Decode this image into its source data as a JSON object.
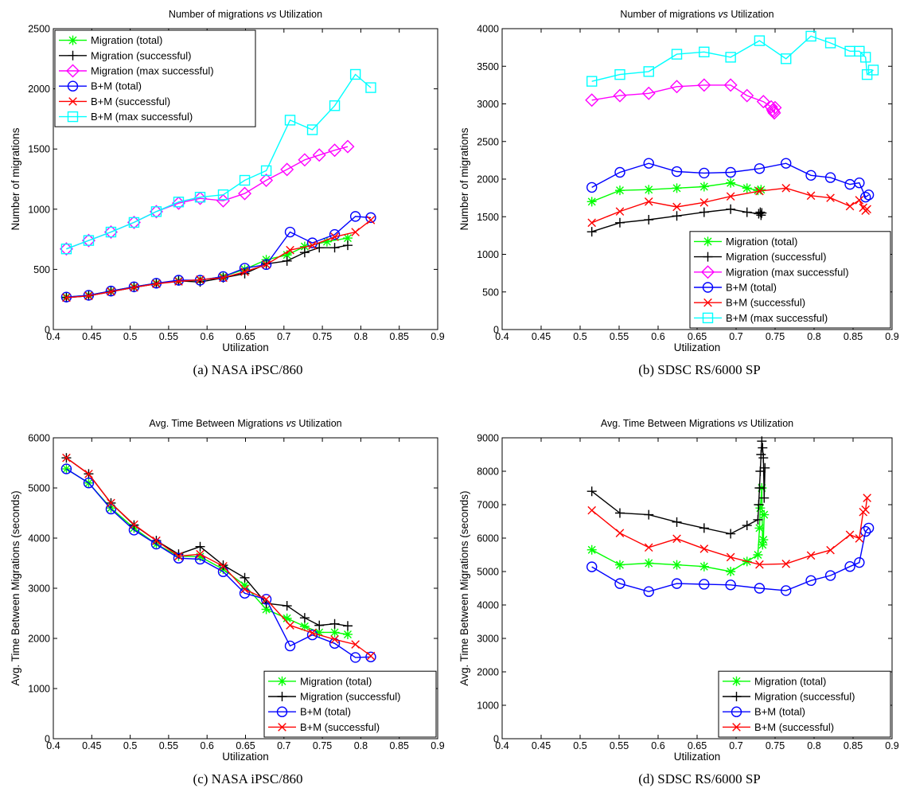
{
  "chart_data": [
    {
      "type": "line",
      "title": "Number of migrations vs Utilization",
      "title_parts": [
        "Number of migrations ",
        "vs",
        " Utilization"
      ],
      "xlabel": "Utilization",
      "ylabel": "Number of migrations",
      "caption": "(a) NASA iPSC/860",
      "xlim": [
        0.4,
        0.9
      ],
      "ylim": [
        0,
        2500
      ],
      "xticks": [
        "0.4",
        "0.45",
        "0.5",
        "0.55",
        "0.6",
        "0.65",
        "0.7",
        "0.75",
        "0.8",
        "0.85",
        "0.9"
      ],
      "yticks": [
        "0",
        "500",
        "1000",
        "1500",
        "2000",
        "2500"
      ],
      "legend_position": "top-left",
      "series": [
        {
          "name": "Migration (total)",
          "color": "#00ff00",
          "marker": "asterisk",
          "x": [
            0.417,
            0.446,
            0.475,
            0.505,
            0.534,
            0.563,
            0.591,
            0.621,
            0.649,
            0.677,
            0.704,
            0.727,
            0.756,
            0.783
          ],
          "y": [
            270,
            285,
            320,
            355,
            385,
            405,
            410,
            440,
            500,
            580,
            620,
            690,
            730,
            760
          ]
        },
        {
          "name": "Migration (successful)",
          "color": "#000000",
          "marker": "plus",
          "x": [
            0.417,
            0.446,
            0.475,
            0.505,
            0.534,
            0.563,
            0.591,
            0.621,
            0.649,
            0.677,
            0.704,
            0.727,
            0.746,
            0.766,
            0.783
          ],
          "y": [
            265,
            280,
            315,
            350,
            380,
            405,
            395,
            430,
            465,
            545,
            570,
            640,
            680,
            680,
            700
          ]
        },
        {
          "name": "Migration (max successful)",
          "color": "#ff00ff",
          "marker": "diamond",
          "x": [
            0.417,
            0.446,
            0.475,
            0.505,
            0.534,
            0.563,
            0.591,
            0.621,
            0.649,
            0.677,
            0.704,
            0.727,
            0.746,
            0.766,
            0.783
          ],
          "y": [
            670,
            740,
            810,
            890,
            980,
            1050,
            1090,
            1070,
            1130,
            1240,
            1330,
            1410,
            1450,
            1490,
            1520
          ]
        },
        {
          "name": "B+M (total)",
          "color": "#0000ff",
          "marker": "circle",
          "x": [
            0.417,
            0.446,
            0.475,
            0.505,
            0.534,
            0.563,
            0.591,
            0.621,
            0.649,
            0.677,
            0.708,
            0.737,
            0.766,
            0.793,
            0.813
          ],
          "y": [
            270,
            285,
            320,
            355,
            385,
            410,
            410,
            440,
            510,
            540,
            810,
            720,
            790,
            940,
            930
          ]
        },
        {
          "name": "B+M (successful)",
          "color": "#ff0000",
          "marker": "x",
          "x": [
            0.417,
            0.446,
            0.475,
            0.505,
            0.534,
            0.563,
            0.591,
            0.621,
            0.649,
            0.677,
            0.708,
            0.737,
            0.766,
            0.793,
            0.813
          ],
          "y": [
            265,
            280,
            315,
            350,
            380,
            400,
            415,
            430,
            480,
            540,
            660,
            700,
            770,
            810,
            910
          ]
        },
        {
          "name": "B+M (max successful)",
          "color": "#00ffff",
          "marker": "square",
          "x": [
            0.417,
            0.446,
            0.475,
            0.505,
            0.534,
            0.563,
            0.591,
            0.621,
            0.649,
            0.677,
            0.708,
            0.737,
            0.766,
            0.793,
            0.813
          ],
          "y": [
            670,
            740,
            810,
            890,
            980,
            1060,
            1100,
            1120,
            1240,
            1320,
            1740,
            1660,
            1860,
            2120,
            2010
          ]
        }
      ]
    },
    {
      "type": "line",
      "title": "Number of migrations vs Utilization",
      "title_parts": [
        "Number of migrations ",
        "vs",
        " Utilization"
      ],
      "xlabel": "Utilization",
      "ylabel": "Number of migrations",
      "caption": "(b) SDSC RS/6000 SP",
      "xlim": [
        0.4,
        0.9
      ],
      "ylim": [
        0,
        4000
      ],
      "xticks": [
        "0.4",
        "0.45",
        "0.5",
        "0.55",
        "0.6",
        "0.65",
        "0.7",
        "0.75",
        "0.8",
        "0.85",
        "0.9"
      ],
      "yticks": [
        "0",
        "500",
        "1000",
        "1500",
        "2000",
        "2500",
        "3000",
        "3500",
        "4000"
      ],
      "legend_position": "bottom-right",
      "series": [
        {
          "name": "Migration (total)",
          "color": "#00ff00",
          "marker": "asterisk",
          "x": [
            0.515,
            0.551,
            0.588,
            0.624,
            0.659,
            0.693,
            0.714,
            0.728,
            0.732
          ],
          "y": [
            1700,
            1850,
            1860,
            1880,
            1900,
            1950,
            1880,
            1850,
            1860
          ]
        },
        {
          "name": "Migration (successful)",
          "color": "#000000",
          "marker": "plus",
          "x": [
            0.515,
            0.551,
            0.588,
            0.624,
            0.659,
            0.693,
            0.714,
            0.729,
            0.731,
            0.732,
            0.733
          ],
          "y": [
            1300,
            1420,
            1460,
            1510,
            1560,
            1600,
            1560,
            1540,
            1560,
            1520,
            1550
          ]
        },
        {
          "name": "Migration (max successful)",
          "color": "#ff00ff",
          "marker": "diamond",
          "x": [
            0.515,
            0.551,
            0.588,
            0.624,
            0.659,
            0.693,
            0.714,
            0.735,
            0.745,
            0.747,
            0.748,
            0.749,
            0.75
          ],
          "y": [
            3050,
            3110,
            3140,
            3230,
            3250,
            3250,
            3110,
            3030,
            2960,
            2920,
            2900,
            2880,
            2950
          ]
        },
        {
          "name": "B+M (total)",
          "color": "#0000ff",
          "marker": "circle",
          "x": [
            0.515,
            0.551,
            0.588,
            0.624,
            0.659,
            0.693,
            0.73,
            0.764,
            0.796,
            0.821,
            0.846,
            0.858,
            0.866,
            0.87
          ],
          "y": [
            1890,
            2090,
            2210,
            2100,
            2080,
            2090,
            2140,
            2210,
            2050,
            2020,
            1930,
            1950,
            1760,
            1790
          ]
        },
        {
          "name": "B+M (successful)",
          "color": "#ff0000",
          "marker": "x",
          "x": [
            0.515,
            0.551,
            0.588,
            0.624,
            0.659,
            0.693,
            0.73,
            0.764,
            0.796,
            0.821,
            0.846,
            0.858,
            0.863,
            0.866,
            0.868
          ],
          "y": [
            1420,
            1570,
            1700,
            1630,
            1690,
            1770,
            1840,
            1880,
            1780,
            1750,
            1640,
            1720,
            1620,
            1580,
            1600
          ]
        },
        {
          "name": "B+M (max successful)",
          "color": "#00ffff",
          "marker": "square",
          "x": [
            0.515,
            0.551,
            0.588,
            0.624,
            0.659,
            0.693,
            0.73,
            0.764,
            0.796,
            0.821,
            0.846,
            0.858,
            0.866,
            0.868,
            0.876
          ],
          "y": [
            3300,
            3390,
            3430,
            3660,
            3690,
            3620,
            3840,
            3600,
            3900,
            3810,
            3700,
            3700,
            3620,
            3390,
            3450
          ]
        }
      ]
    },
    {
      "type": "line",
      "title": "Avg. Time Between Migrations vs Utilization",
      "title_parts": [
        "Avg. Time Between Migrations ",
        "vs",
        " Utilization"
      ],
      "xlabel": "Utilization",
      "ylabel": "Avg. Time Between Migrations (seconds)",
      "caption": "(c) NASA iPSC/860",
      "xlim": [
        0.4,
        0.9
      ],
      "ylim": [
        0,
        6000
      ],
      "xticks": [
        "0.4",
        "0.45",
        "0.5",
        "0.55",
        "0.6",
        "0.65",
        "0.7",
        "0.75",
        "0.8",
        "0.85",
        "0.9"
      ],
      "yticks": [
        "0",
        "1000",
        "2000",
        "3000",
        "4000",
        "5000",
        "6000"
      ],
      "legend_position": "bottom-right",
      "series": [
        {
          "name": "Migration (total)",
          "color": "#00ff00",
          "marker": "asterisk",
          "x": [
            0.417,
            0.446,
            0.475,
            0.505,
            0.534,
            0.563,
            0.591,
            0.621,
            0.649,
            0.677,
            0.704,
            0.727,
            0.746,
            0.766,
            0.783
          ],
          "y": [
            5380,
            5100,
            4600,
            4200,
            3880,
            3640,
            3630,
            3380,
            3060,
            2580,
            2400,
            2240,
            2120,
            2120,
            2080
          ]
        },
        {
          "name": "Migration (successful)",
          "color": "#000000",
          "marker": "plus",
          "x": [
            0.417,
            0.446,
            0.475,
            0.505,
            0.534,
            0.563,
            0.591,
            0.621,
            0.649,
            0.677,
            0.704,
            0.727,
            0.746,
            0.766,
            0.783
          ],
          "y": [
            5600,
            5280,
            4700,
            4260,
            3950,
            3680,
            3830,
            3460,
            3210,
            2700,
            2650,
            2410,
            2260,
            2290,
            2250
          ]
        },
        {
          "name": "B+M (total)",
          "color": "#0000ff",
          "marker": "circle",
          "x": [
            0.417,
            0.446,
            0.475,
            0.505,
            0.534,
            0.563,
            0.591,
            0.621,
            0.649,
            0.677,
            0.708,
            0.737,
            0.766,
            0.793,
            0.813
          ],
          "y": [
            5380,
            5100,
            4580,
            4160,
            3880,
            3600,
            3580,
            3330,
            2900,
            2780,
            1850,
            2070,
            1900,
            1620,
            1630
          ]
        },
        {
          "name": "B+M (successful)",
          "color": "#ff0000",
          "marker": "x",
          "x": [
            0.417,
            0.446,
            0.475,
            0.505,
            0.534,
            0.563,
            0.591,
            0.621,
            0.649,
            0.677,
            0.708,
            0.737,
            0.766,
            0.793,
            0.813
          ],
          "y": [
            5600,
            5280,
            4700,
            4270,
            3950,
            3640,
            3680,
            3440,
            2980,
            2780,
            2260,
            2110,
            1980,
            1880,
            1650
          ]
        }
      ]
    },
    {
      "type": "line",
      "title": "Avg. Time Between Migrations vs Utilization",
      "title_parts": [
        "Avg. Time Between Migrations ",
        "vs",
        " Utilization"
      ],
      "xlabel": "Utilization",
      "ylabel": "Avg. Time Between Migrations (seconds)",
      "caption": "(d) SDSC RS/6000 SP",
      "xlim": [
        0.4,
        0.9
      ],
      "ylim": [
        0,
        9000
      ],
      "xticks": [
        "0.4",
        "0.45",
        "0.5",
        "0.55",
        "0.6",
        "0.65",
        "0.7",
        "0.75",
        "0.8",
        "0.85",
        "0.9"
      ],
      "yticks": [
        "0",
        "1000",
        "2000",
        "3000",
        "4000",
        "5000",
        "6000",
        "7000",
        "8000",
        "9000"
      ],
      "legend_position": "bottom-right",
      "series": [
        {
          "name": "Migration (total)",
          "color": "#00ff00",
          "marker": "asterisk",
          "x": [
            0.515,
            0.551,
            0.588,
            0.624,
            0.659,
            0.693,
            0.714,
            0.728,
            0.73,
            0.731,
            0.733,
            0.734,
            0.735,
            0.736
          ],
          "y": [
            5650,
            5200,
            5250,
            5200,
            5150,
            5000,
            5300,
            5500,
            6300,
            6900,
            7500,
            5800,
            5950,
            6700
          ]
        },
        {
          "name": "Migration (successful)",
          "color": "#000000",
          "marker": "plus",
          "x": [
            0.515,
            0.551,
            0.588,
            0.624,
            0.659,
            0.693,
            0.714,
            0.728,
            0.729,
            0.73,
            0.731,
            0.732,
            0.733,
            0.734,
            0.735,
            0.736,
            0.737
          ],
          "y": [
            7400,
            6750,
            6700,
            6480,
            6300,
            6130,
            6380,
            6550,
            7000,
            7500,
            8000,
            8500,
            8900,
            8700,
            8400,
            7200,
            8100
          ]
        },
        {
          "name": "B+M (total)",
          "color": "#0000ff",
          "marker": "circle",
          "x": [
            0.515,
            0.551,
            0.588,
            0.624,
            0.659,
            0.693,
            0.73,
            0.764,
            0.796,
            0.821,
            0.846,
            0.858,
            0.866,
            0.87
          ],
          "y": [
            5140,
            4640,
            4400,
            4640,
            4620,
            4600,
            4500,
            4430,
            4730,
            4880,
            5150,
            5270,
            6200,
            6300
          ]
        },
        {
          "name": "B+M (successful)",
          "color": "#ff0000",
          "marker": "x",
          "x": [
            0.515,
            0.551,
            0.588,
            0.624,
            0.659,
            0.693,
            0.73,
            0.764,
            0.796,
            0.821,
            0.846,
            0.858,
            0.863,
            0.866,
            0.868
          ],
          "y": [
            6830,
            6150,
            5720,
            5980,
            5680,
            5430,
            5210,
            5230,
            5480,
            5640,
            6100,
            5990,
            6780,
            6850,
            7200
          ]
        }
      ]
    }
  ]
}
